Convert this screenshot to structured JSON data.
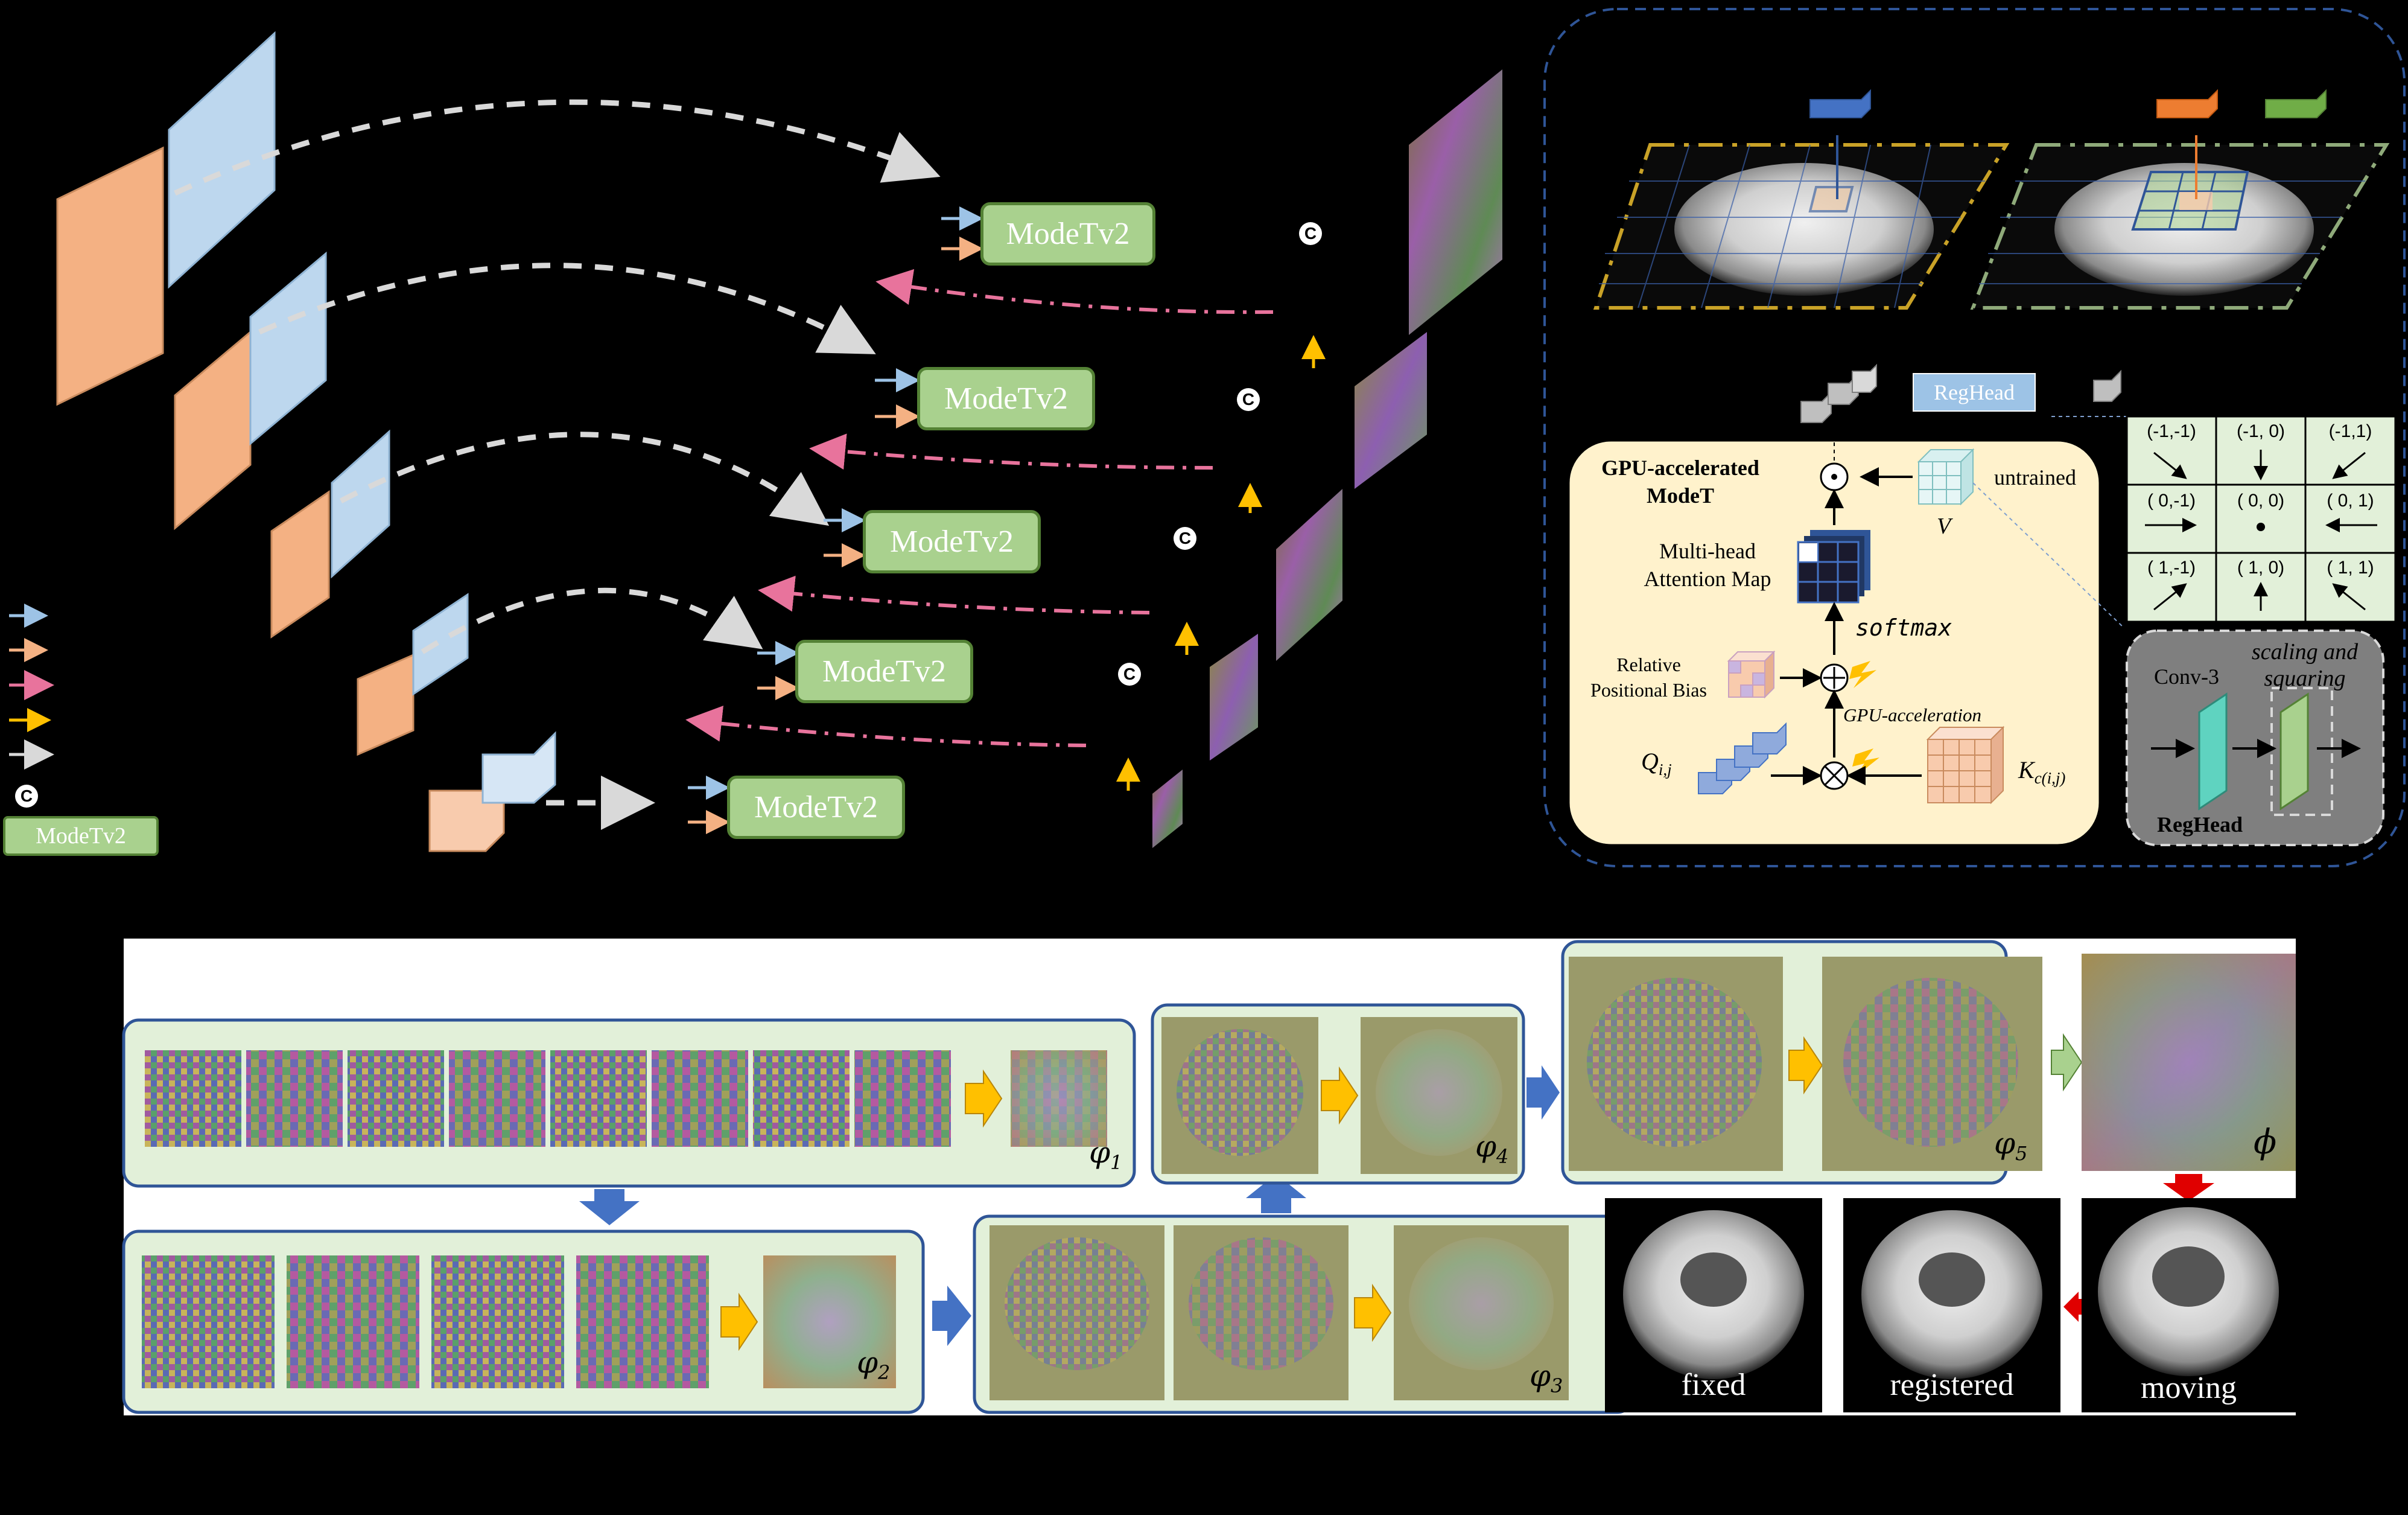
{
  "modules": {
    "modetv2_1": "ModeTv2",
    "modetv2_2": "ModeTv2",
    "modetv2_3": "ModeTv2",
    "modetv2_4": "ModeTv2",
    "modetv2_5": "ModeTv2",
    "legend_modetv2": "ModeTv2",
    "concat_symbol": "C"
  },
  "detail": {
    "reghead_label": "RegHead",
    "gpu_title_line1": "GPU-accelerated",
    "gpu_title_line2": "ModeT",
    "untrained": "untrained",
    "v_label": "V",
    "attention_line1": "Multi-head",
    "attention_line2": "Attention Map",
    "softmax": "softmax",
    "rpb_line1": "Relative",
    "rpb_line2": "Positional Bias",
    "gpu_acceleration": "GPU-acceleration",
    "q_label": "Q",
    "q_sub": "i,j",
    "k_label": "K",
    "k_sub": "c(i,j)",
    "conv3": "Conv-3",
    "scaling_line1": "scaling and",
    "scaling_line2": "squaring",
    "reghead_bottom": "RegHead",
    "grid": [
      "(-1,-1)",
      "(-1, 0)",
      "(-1,1)",
      "( 0,-1)",
      "( 0, 0)",
      "( 0, 1)",
      "( 1,-1)",
      "( 1, 0)",
      "( 1, 1)"
    ]
  },
  "bottom": {
    "phi1": "φ",
    "phi1_sub": "1",
    "phi2": "φ",
    "phi2_sub": "2",
    "phi3": "φ",
    "phi3_sub": "3",
    "phi4": "φ",
    "phi4_sub": "4",
    "phi5": "φ",
    "phi5_sub": "5",
    "phi_final": "ϕ",
    "fixed": "fixed",
    "registered": "registered",
    "moving": "moving"
  },
  "colors": {
    "block_fill": "#a9d18e",
    "block_border": "#548235",
    "arrow_blue": "#9dc3e6",
    "arrow_orange": "#f4b183",
    "arrow_pink": "#e8739c",
    "arrow_yellow": "#ffc000",
    "arrow_gray": "#d9d9d9",
    "panel_bg": "#fff2cc",
    "bottom_panel_bg": "#e2f0d9",
    "bottom_panel_border": "#2f5597"
  }
}
